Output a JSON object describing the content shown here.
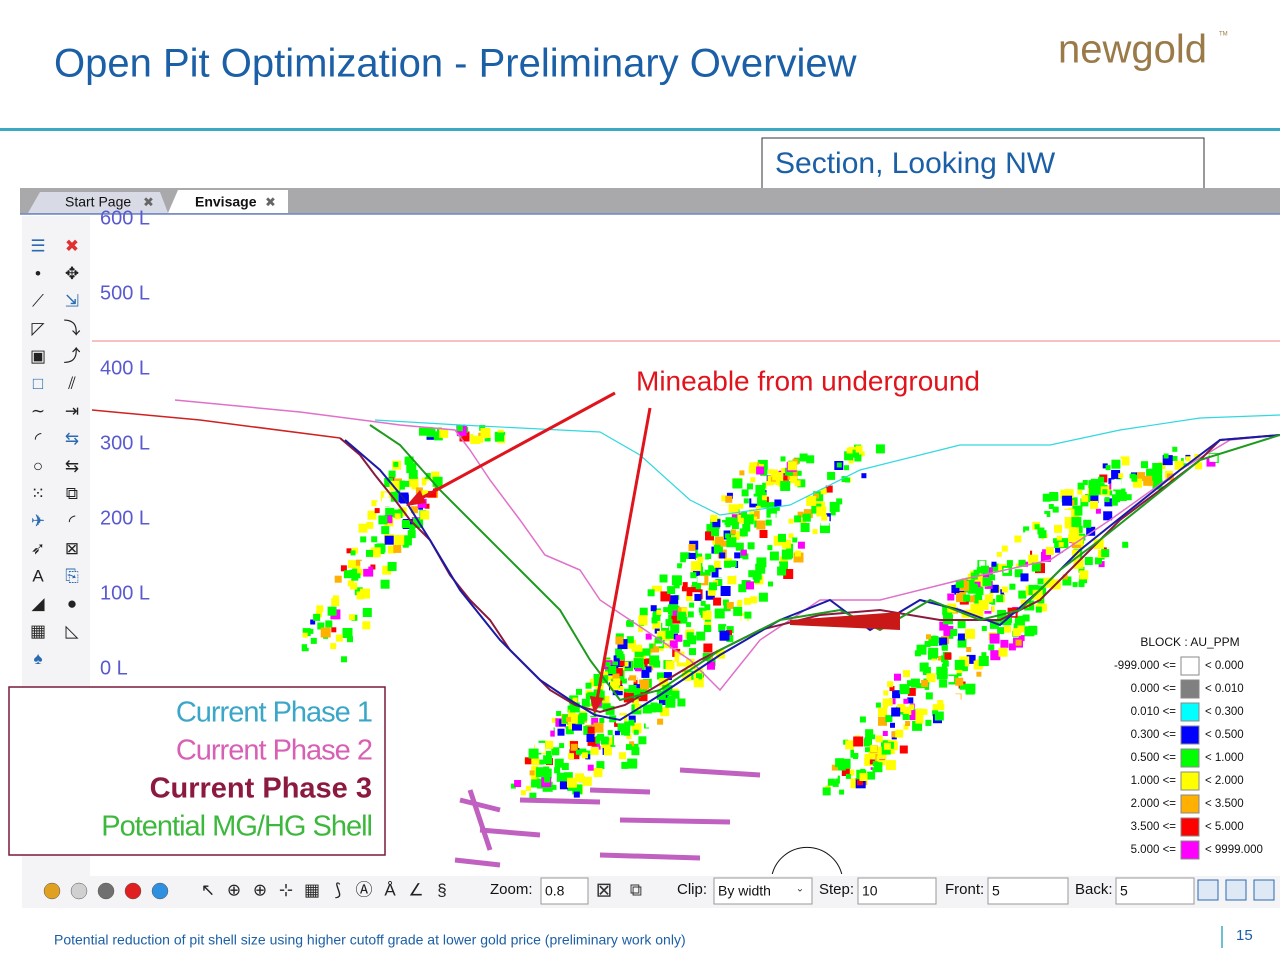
{
  "header": {
    "title": "Open Pit Optimization - Preliminary Overview",
    "logo": "newgold",
    "logo_tm": "TM"
  },
  "section_label": "Section, Looking NW",
  "tabs": [
    {
      "label": "Start Page"
    },
    {
      "label": "Envisage"
    }
  ],
  "levels": [
    "600 L",
    "500 L",
    "400 L",
    "300 L",
    "200 L",
    "100 L",
    "0 L"
  ],
  "annotation": "Mineable from underground",
  "phase_legend": [
    {
      "label": "Current Phase 1",
      "color": "#3aa6c8"
    },
    {
      "label": "Current Phase 2",
      "color": "#d860b4"
    },
    {
      "label": "Current Phase 3",
      "color": "#8b1a3e"
    },
    {
      "label": "Potential MG/HG Shell",
      "color": "#3cb83c"
    }
  ],
  "block_legend": {
    "title": "BLOCK : AU_PPM",
    "rows": [
      {
        "from": "-999.000 <=",
        "to": "< 0.000",
        "color": "#ffffff"
      },
      {
        "from": "0.000 <=",
        "to": "< 0.010",
        "color": "#808080"
      },
      {
        "from": "0.010 <=",
        "to": "< 0.300",
        "color": "#00ffff"
      },
      {
        "from": "0.300 <=",
        "to": "< 0.500",
        "color": "#0000ff"
      },
      {
        "from": "0.500 <=",
        "to": "< 1.000",
        "color": "#00ff00"
      },
      {
        "from": "1.000 <=",
        "to": "< 2.000",
        "color": "#ffff00"
      },
      {
        "from": "2.000 <=",
        "to": "< 3.500",
        "color": "#ffb000"
      },
      {
        "from": "3.500 <=",
        "to": "< 5.000",
        "color": "#ff0000"
      },
      {
        "from": "5.000 <=",
        "to": "< 9999.000",
        "color": "#ff00ff"
      }
    ]
  },
  "toolbar": {
    "zoom_label": "Zoom:",
    "zoom": "0.8",
    "clip_label": "Clip:",
    "clip": "By width",
    "step_label": "Step:",
    "step": "10",
    "front_label": "Front:",
    "front": "5",
    "back_label": "Back:",
    "back": "5"
  },
  "footer": {
    "note": "Potential reduction of pit shell size using higher cutoff grade at lower gold price (preliminary work only)",
    "page": "15"
  }
}
